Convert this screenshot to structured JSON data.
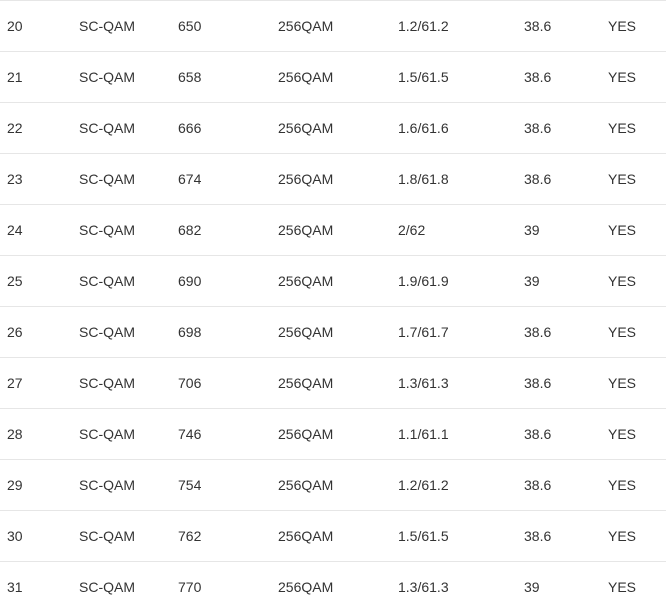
{
  "table": {
    "rows": [
      [
        "20",
        "SC-QAM",
        "650",
        "256QAM",
        "1.2/61.2",
        "38.6",
        "YES"
      ],
      [
        "21",
        "SC-QAM",
        "658",
        "256QAM",
        "1.5/61.5",
        "38.6",
        "YES"
      ],
      [
        "22",
        "SC-QAM",
        "666",
        "256QAM",
        "1.6/61.6",
        "38.6",
        "YES"
      ],
      [
        "23",
        "SC-QAM",
        "674",
        "256QAM",
        "1.8/61.8",
        "38.6",
        "YES"
      ],
      [
        "24",
        "SC-QAM",
        "682",
        "256QAM",
        "2/62",
        "39",
        "YES"
      ],
      [
        "25",
        "SC-QAM",
        "690",
        "256QAM",
        "1.9/61.9",
        "39",
        "YES"
      ],
      [
        "26",
        "SC-QAM",
        "698",
        "256QAM",
        "1.7/61.7",
        "38.6",
        "YES"
      ],
      [
        "27",
        "SC-QAM",
        "706",
        "256QAM",
        "1.3/61.3",
        "38.6",
        "YES"
      ],
      [
        "28",
        "SC-QAM",
        "746",
        "256QAM",
        "1.1/61.1",
        "38.6",
        "YES"
      ],
      [
        "29",
        "SC-QAM",
        "754",
        "256QAM",
        "1.2/61.2",
        "38.6",
        "YES"
      ],
      [
        "30",
        "SC-QAM",
        "762",
        "256QAM",
        "1.5/61.5",
        "38.6",
        "YES"
      ],
      [
        "31",
        "SC-QAM",
        "770",
        "256QAM",
        "1.3/61.3",
        "39",
        "YES"
      ]
    ]
  }
}
